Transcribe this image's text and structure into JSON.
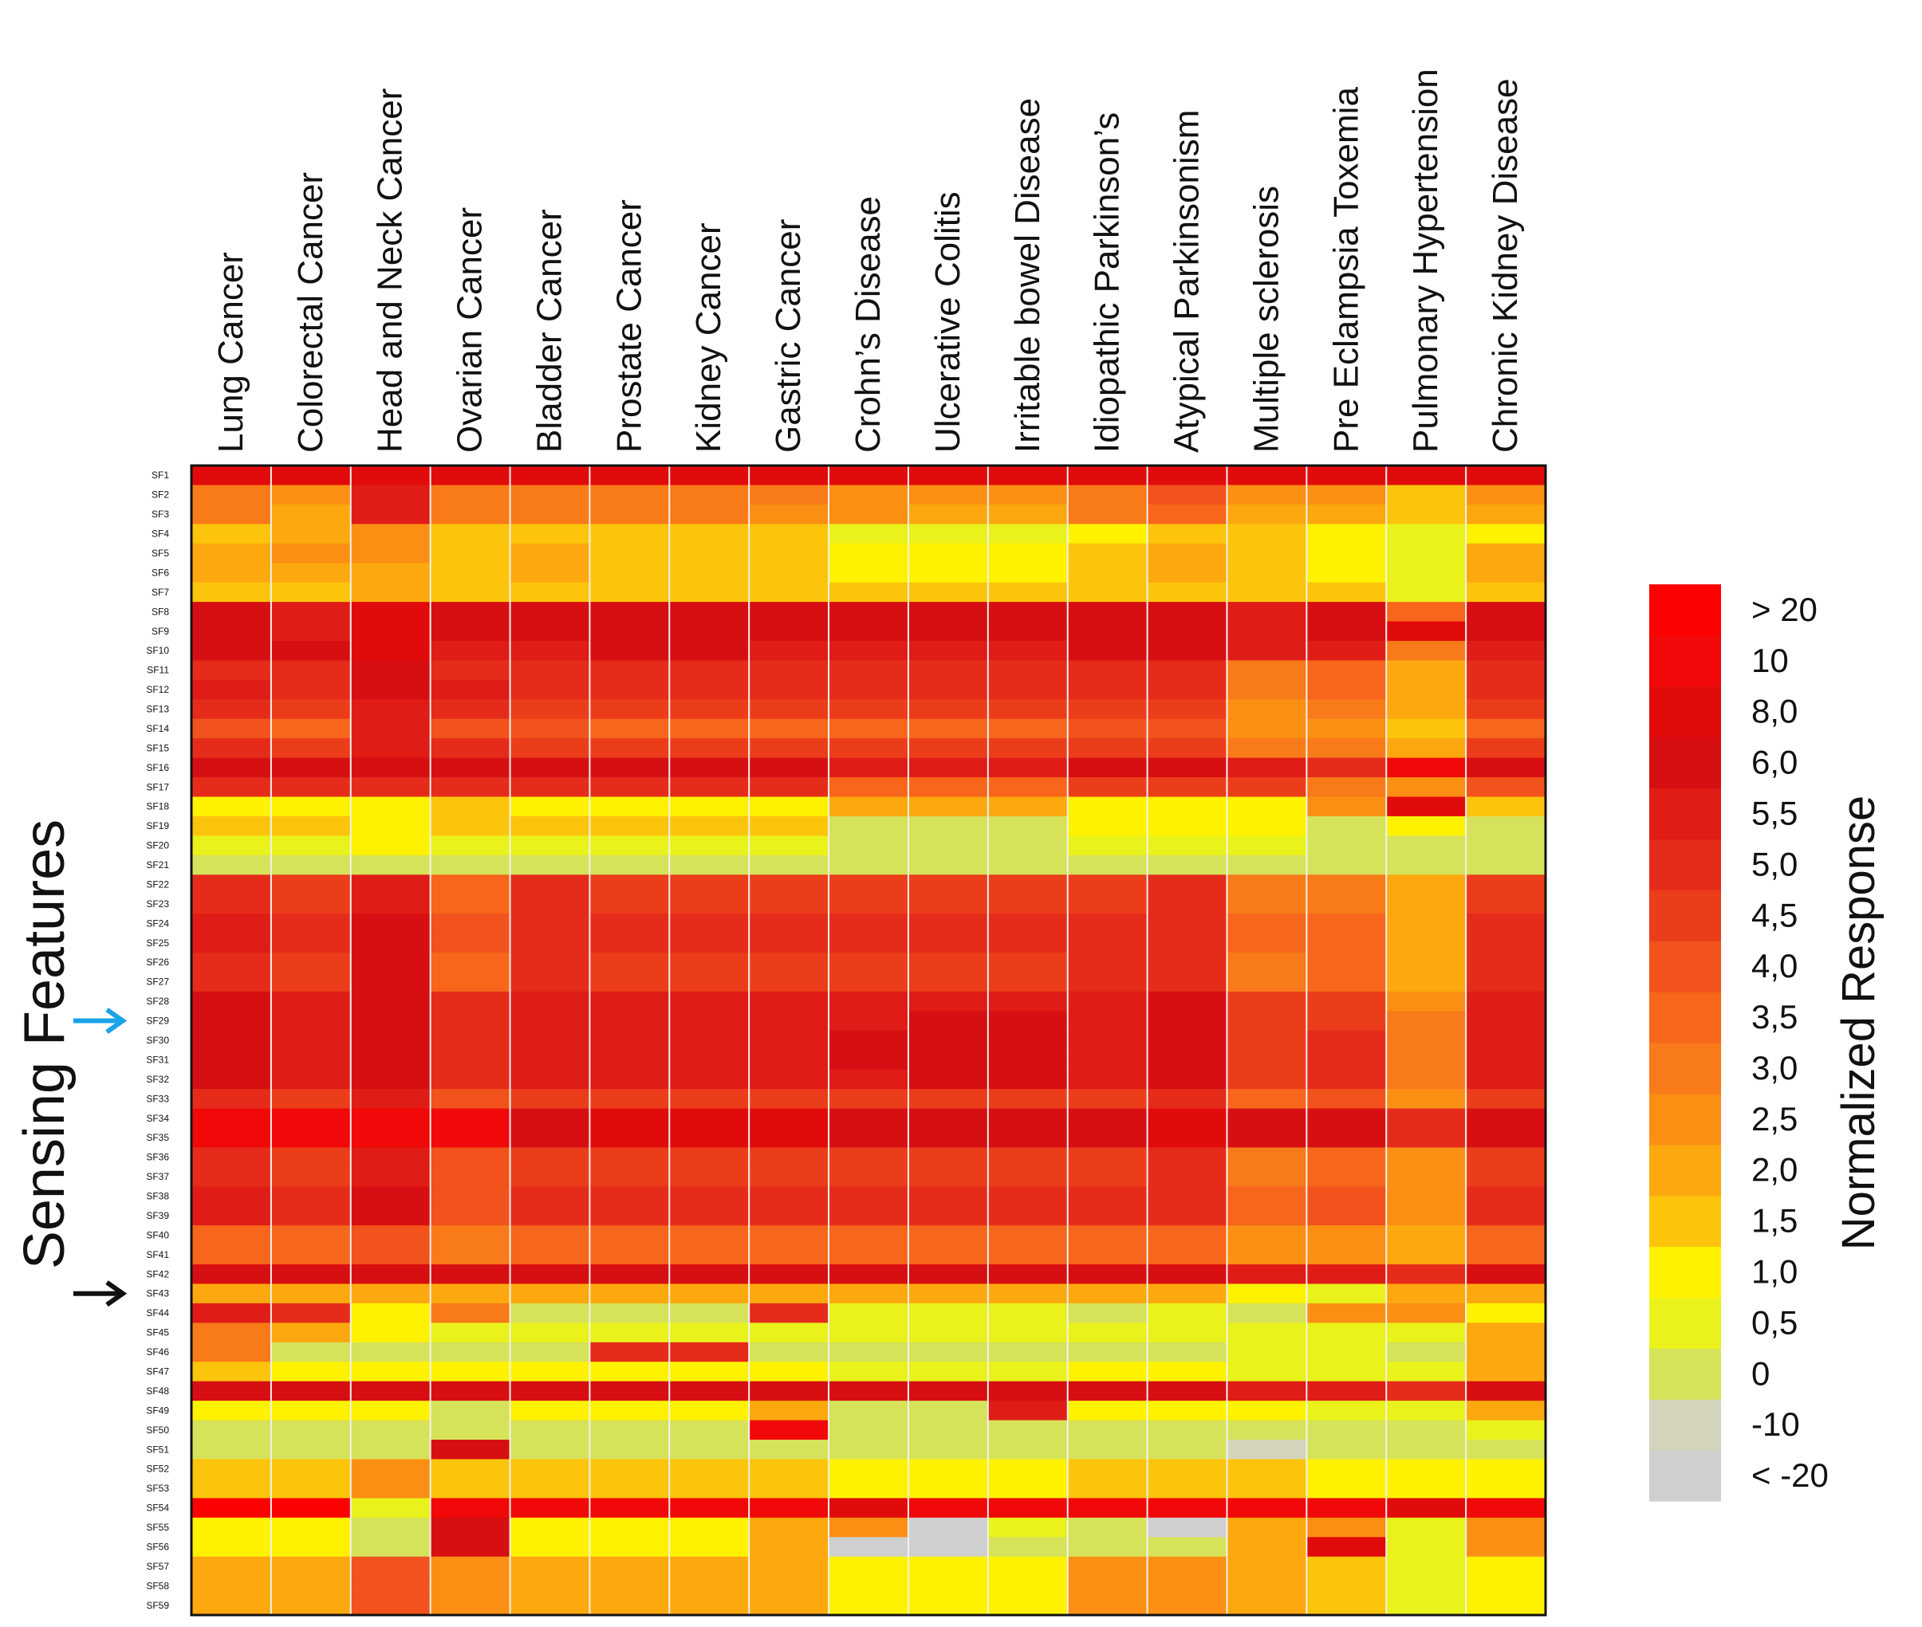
{
  "chart_data": {
    "type": "heatmap",
    "title": "",
    "ylabel": "Sensing Features",
    "colorbar_label": "Normalized Response",
    "columns": [
      "Lung Cancer",
      "Colorectal Cancer",
      "Head and Neck Cancer",
      "Ovarian Cancer",
      "Bladder Cancer",
      "Prostate Cancer",
      "Kidney Cancer",
      "Gastric Cancer",
      "Crohn’s Disease",
      "Ulcerative Colitis",
      "Irritable bowel Disease",
      "Idiopathic Parkinson’s",
      "Atypical Parkinsonism",
      "Multiple sclerosis",
      "Pre Eclampsia Toxemia",
      "Pulmonary Hypertension",
      "Chronic Kidney Disease"
    ],
    "rows": [
      "SF1",
      "SF2",
      "SF3",
      "SF4",
      "SF5",
      "SF6",
      "SF7",
      "SF8",
      "SF9",
      "SF10",
      "SF11",
      "SF12",
      "SF13",
      "SF14",
      "SF15",
      "SF16",
      "SF17",
      "SF18",
      "SF19",
      "SF20",
      "SF21",
      "SF22",
      "SF23",
      "SF24",
      "SF25",
      "SF26",
      "SF27",
      "SF28",
      "SF29",
      "SF30",
      "SF31",
      "SF32",
      "SF33",
      "SF34",
      "SF35",
      "SF36",
      "SF37",
      "SF38",
      "SF39",
      "SF40",
      "SF41",
      "SF42",
      "SF43",
      "SF44",
      "SF45",
      "SF46",
      "SF47",
      "SF48",
      "SF49",
      "SF50",
      "SF51",
      "SF52",
      "SF53",
      "SF54",
      "SF55",
      "SF56",
      "SF57",
      "SF58",
      "SF59"
    ],
    "color_scale": {
      "bins": [
        "< -20",
        "-10",
        "0",
        "0,5",
        "1,0",
        "1,5",
        "2,0",
        "2,5",
        "3,0",
        "3,5",
        "4,0",
        "4,5",
        "5,0",
        "5,5",
        "6,0",
        "8,0",
        "10",
        "> 20"
      ],
      "colors": [
        "#cfcfcf",
        "#d4d4bc",
        "#d6e25a",
        "#e9f21a",
        "#fff200",
        "#fdc40c",
        "#fca80e",
        "#fb8f14",
        "#f97a18",
        "#f7661a",
        "#f2521b",
        "#ec3d1a",
        "#e52c1a",
        "#df1c16",
        "#d70f12",
        "#e20b0b",
        "#f10808",
        "#fd0000"
      ]
    },
    "annotations": [
      {
        "row": "SF29",
        "marker": "arrow",
        "color": "#1aa3e8"
      },
      {
        "row": "SF43",
        "marker": "arrow",
        "color": "#111111"
      }
    ],
    "values": [
      [
        15,
        15,
        15,
        15,
        15,
        15,
        15,
        15,
        15,
        15,
        15,
        15,
        15,
        15,
        15,
        15,
        15
      ],
      [
        8,
        7,
        13,
        8,
        8,
        8,
        8,
        8,
        7,
        7,
        7,
        8,
        10,
        7,
        7,
        5,
        7
      ],
      [
        8,
        6,
        13,
        8,
        8,
        8,
        8,
        7,
        7,
        6,
        6,
        8,
        9,
        6,
        6,
        5,
        6
      ],
      [
        5,
        6,
        7,
        5,
        5,
        5,
        5,
        5,
        3,
        3,
        3,
        4,
        5,
        5,
        4,
        3,
        4
      ],
      [
        6,
        7,
        7,
        5,
        6,
        5,
        5,
        5,
        4,
        4,
        4,
        5,
        6,
        5,
        4,
        3,
        6
      ],
      [
        6,
        6,
        6,
        5,
        6,
        5,
        5,
        5,
        4,
        4,
        4,
        5,
        6,
        5,
        4,
        3,
        6
      ],
      [
        5,
        5,
        6,
        5,
        5,
        5,
        5,
        5,
        5,
        5,
        5,
        5,
        5,
        5,
        5,
        3,
        5
      ],
      [
        14,
        13,
        15,
        14,
        14,
        14,
        14,
        14,
        14,
        14,
        14,
        14,
        14,
        13,
        14,
        9,
        14
      ],
      [
        14,
        13,
        15,
        14,
        14,
        14,
        14,
        14,
        14,
        14,
        14,
        14,
        14,
        13,
        14,
        15,
        14
      ],
      [
        14,
        14,
        15,
        13,
        13,
        14,
        14,
        13,
        13,
        13,
        13,
        14,
        14,
        13,
        13,
        8,
        13
      ],
      [
        12,
        12,
        14,
        12,
        12,
        12,
        12,
        12,
        12,
        12,
        12,
        12,
        12,
        8,
        9,
        6,
        12
      ],
      [
        13,
        12,
        14,
        13,
        12,
        12,
        12,
        12,
        12,
        12,
        12,
        12,
        12,
        8,
        9,
        6,
        12
      ],
      [
        12,
        11,
        13,
        12,
        11,
        11,
        11,
        11,
        11,
        11,
        11,
        11,
        11,
        7,
        8,
        6,
        11
      ],
      [
        10,
        9,
        13,
        10,
        10,
        9,
        9,
        9,
        9,
        9,
        9,
        10,
        10,
        7,
        7,
        5,
        9
      ],
      [
        12,
        11,
        13,
        12,
        11,
        11,
        11,
        11,
        11,
        11,
        11,
        11,
        11,
        8,
        8,
        6,
        11
      ],
      [
        14,
        14,
        14,
        14,
        14,
        14,
        14,
        14,
        13,
        13,
        13,
        14,
        14,
        13,
        12,
        16,
        14
      ],
      [
        12,
        12,
        12,
        12,
        12,
        12,
        12,
        12,
        9,
        9,
        9,
        11,
        11,
        11,
        8,
        7,
        10
      ],
      [
        4,
        4,
        4,
        5,
        4,
        4,
        4,
        4,
        6,
        6,
        6,
        4,
        4,
        4,
        7,
        15,
        5
      ],
      [
        5,
        5,
        4,
        5,
        5,
        5,
        5,
        5,
        2,
        2,
        2,
        4,
        4,
        4,
        2,
        4,
        2
      ],
      [
        3,
        3,
        4,
        3,
        3,
        3,
        3,
        3,
        2,
        2,
        2,
        3,
        3,
        3,
        2,
        2,
        2
      ],
      [
        2,
        2,
        2,
        2,
        2,
        2,
        2,
        2,
        2,
        2,
        2,
        2,
        2,
        2,
        2,
        2,
        2
      ],
      [
        12,
        11,
        13,
        9,
        12,
        11,
        11,
        11,
        11,
        11,
        11,
        11,
        12,
        8,
        8,
        6,
        11
      ],
      [
        12,
        11,
        13,
        9,
        12,
        11,
        11,
        11,
        11,
        11,
        11,
        11,
        12,
        8,
        8,
        6,
        11
      ],
      [
        13,
        12,
        14,
        10,
        12,
        12,
        12,
        12,
        12,
        12,
        12,
        12,
        12,
        9,
        9,
        6,
        12
      ],
      [
        13,
        12,
        14,
        10,
        12,
        12,
        12,
        12,
        12,
        12,
        12,
        12,
        12,
        9,
        9,
        6,
        12
      ],
      [
        12,
        11,
        14,
        9,
        12,
        11,
        11,
        11,
        11,
        11,
        11,
        12,
        12,
        8,
        9,
        6,
        12
      ],
      [
        12,
        11,
        14,
        9,
        12,
        11,
        11,
        11,
        11,
        11,
        11,
        12,
        12,
        8,
        9,
        6,
        12
      ],
      [
        14,
        13,
        14,
        12,
        13,
        13,
        13,
        13,
        13,
        13,
        13,
        13,
        14,
        11,
        11,
        7,
        13
      ],
      [
        14,
        13,
        14,
        12,
        13,
        13,
        13,
        13,
        13,
        14,
        14,
        13,
        14,
        11,
        11,
        8,
        13
      ],
      [
        14,
        13,
        14,
        12,
        13,
        13,
        13,
        13,
        14,
        14,
        14,
        13,
        14,
        11,
        12,
        8,
        13
      ],
      [
        14,
        13,
        14,
        12,
        13,
        13,
        13,
        13,
        14,
        14,
        14,
        13,
        14,
        11,
        12,
        8,
        13
      ],
      [
        14,
        13,
        14,
        12,
        13,
        13,
        13,
        13,
        13,
        14,
        14,
        13,
        14,
        11,
        12,
        8,
        13
      ],
      [
        12,
        11,
        13,
        10,
        11,
        11,
        11,
        11,
        11,
        11,
        11,
        11,
        12,
        9,
        10,
        7,
        11
      ],
      [
        16,
        16,
        16,
        16,
        14,
        15,
        15,
        15,
        14,
        14,
        14,
        14,
        15,
        14,
        14,
        12,
        14
      ],
      [
        16,
        16,
        16,
        16,
        14,
        15,
        15,
        15,
        14,
        14,
        14,
        14,
        15,
        14,
        14,
        12,
        14
      ],
      [
        12,
        11,
        13,
        10,
        11,
        11,
        11,
        11,
        11,
        11,
        11,
        11,
        12,
        8,
        9,
        7,
        11
      ],
      [
        12,
        11,
        13,
        10,
        11,
        11,
        11,
        11,
        11,
        11,
        11,
        11,
        12,
        8,
        9,
        7,
        11
      ],
      [
        13,
        12,
        14,
        10,
        12,
        12,
        12,
        12,
        12,
        12,
        12,
        12,
        12,
        9,
        10,
        7,
        12
      ],
      [
        13,
        12,
        14,
        10,
        12,
        12,
        12,
        12,
        12,
        12,
        12,
        12,
        12,
        9,
        10,
        7,
        12
      ],
      [
        9,
        9,
        10,
        8,
        9,
        9,
        9,
        9,
        9,
        9,
        9,
        9,
        9,
        7,
        7,
        6,
        9
      ],
      [
        9,
        9,
        10,
        8,
        9,
        9,
        9,
        9,
        9,
        9,
        9,
        9,
        9,
        7,
        7,
        6,
        9
      ],
      [
        14,
        14,
        14,
        14,
        14,
        14,
        14,
        14,
        14,
        14,
        14,
        14,
        14,
        13,
        13,
        12,
        14
      ],
      [
        6,
        6,
        6,
        6,
        6,
        6,
        6,
        6,
        6,
        6,
        6,
        6,
        6,
        4,
        3,
        6,
        6
      ],
      [
        13,
        12,
        4,
        8,
        2,
        2,
        2,
        12,
        3,
        3,
        3,
        2,
        3,
        2,
        7,
        7,
        4
      ],
      [
        8,
        6,
        4,
        3,
        3,
        3,
        3,
        3,
        3,
        3,
        3,
        3,
        3,
        3,
        3,
        3,
        6
      ],
      [
        8,
        2,
        2,
        2,
        2,
        12,
        12,
        2,
        2,
        2,
        2,
        2,
        2,
        3,
        3,
        2,
        6
      ],
      [
        5,
        4,
        4,
        4,
        4,
        4,
        4,
        4,
        3,
        3,
        3,
        4,
        4,
        3,
        3,
        3,
        6
      ],
      [
        14,
        14,
        14,
        14,
        14,
        14,
        14,
        14,
        14,
        14,
        14,
        14,
        14,
        13,
        13,
        12,
        14
      ],
      [
        4,
        4,
        4,
        2,
        4,
        4,
        4,
        6,
        2,
        2,
        13,
        4,
        4,
        4,
        3,
        3,
        6
      ],
      [
        2,
        2,
        2,
        2,
        2,
        2,
        2,
        16,
        2,
        2,
        2,
        2,
        2,
        2,
        2,
        2,
        3
      ],
      [
        2,
        2,
        2,
        14,
        2,
        2,
        2,
        2,
        2,
        2,
        2,
        2,
        2,
        1,
        2,
        2,
        2
      ],
      [
        5,
        5,
        7,
        5,
        5,
        5,
        5,
        5,
        4,
        4,
        4,
        5,
        5,
        5,
        4,
        4,
        4
      ],
      [
        5,
        5,
        7,
        5,
        5,
        5,
        5,
        5,
        4,
        4,
        4,
        5,
        5,
        5,
        4,
        4,
        4
      ],
      [
        17,
        17,
        3,
        16,
        16,
        16,
        16,
        16,
        15,
        16,
        16,
        16,
        16,
        16,
        16,
        15,
        16
      ],
      [
        4,
        4,
        2,
        14,
        4,
        4,
        4,
        6,
        7,
        0,
        3,
        2,
        0,
        6,
        7,
        3,
        7
      ],
      [
        4,
        4,
        2,
        14,
        4,
        4,
        4,
        6,
        0,
        0,
        2,
        2,
        2,
        6,
        15,
        3,
        7
      ],
      [
        6,
        6,
        10,
        7,
        6,
        6,
        6,
        6,
        4,
        4,
        4,
        7,
        7,
        6,
        5,
        3,
        4
      ],
      [
        6,
        6,
        10,
        7,
        6,
        6,
        6,
        6,
        4,
        4,
        4,
        7,
        7,
        6,
        5,
        3,
        4
      ],
      [
        6,
        6,
        10,
        7,
        6,
        6,
        6,
        6,
        4,
        4,
        4,
        7,
        7,
        6,
        5,
        3,
        4
      ]
    ]
  }
}
